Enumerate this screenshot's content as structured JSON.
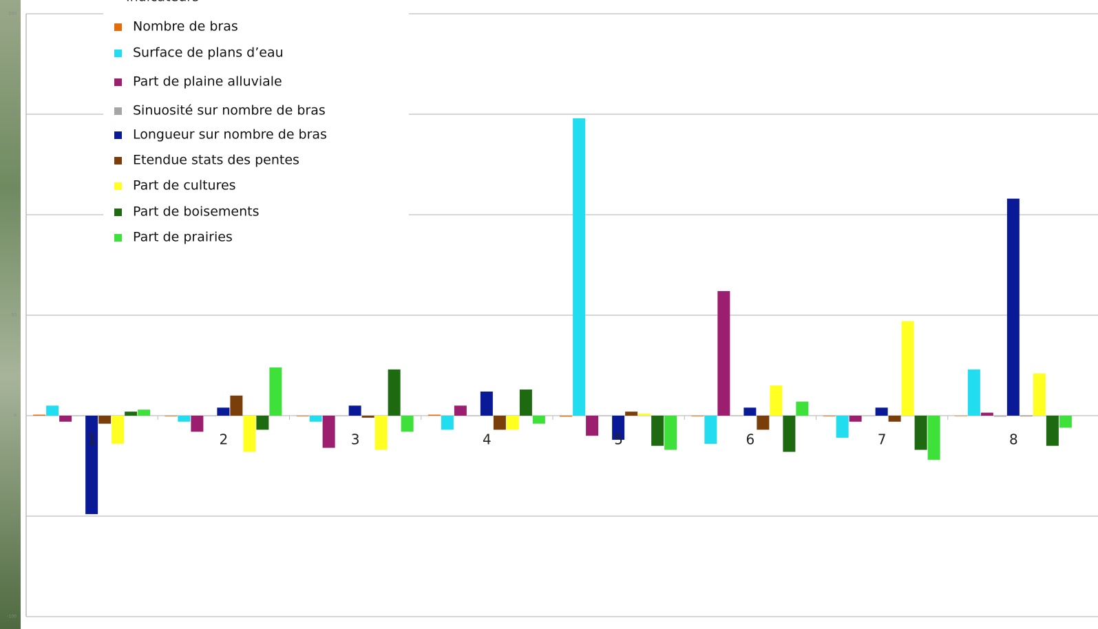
{
  "chart_data": {
    "type": "bar",
    "legend_title": "Indicateurs",
    "categories": [
      "1",
      "2",
      "3",
      "4",
      "5",
      "6",
      "7",
      "8"
    ],
    "series": [
      {
        "name": "Nombre de bras",
        "color": "#e36c0a",
        "values": [
          0.5,
          -0.3,
          -0.3,
          0.5,
          -0.5,
          -0.3,
          -0.3,
          0
        ]
      },
      {
        "name": "Surface de plans d’eau",
        "color": "#22dcf0",
        "values": [
          5,
          -3,
          -3,
          -7,
          148,
          -14,
          -11,
          23
        ]
      },
      {
        "name": "Part de plaine alluviale",
        "color": "#9b1f6e",
        "values": [
          -3,
          -8,
          -16,
          5,
          -10,
          62,
          -3,
          1.5
        ]
      },
      {
        "name": "Sinuosité sur nombre de bras",
        "color": "#a6a6a6",
        "values": [
          0,
          0,
          0,
          0,
          0,
          0,
          0,
          -0.5
        ]
      },
      {
        "name": "Longueur sur nombre de bras",
        "color": "#0a1a96",
        "values": [
          -49,
          4,
          5,
          12,
          -12,
          4,
          4,
          108
        ]
      },
      {
        "name": "Etendue stats des pentes",
        "color": "#7a3e0a",
        "values": [
          -4,
          10,
          -1,
          -7,
          2,
          -7,
          -3,
          0
        ]
      },
      {
        "name": "Part de cultures",
        "color": "#ffff22",
        "values": [
          -14,
          -18,
          -17,
          -7,
          1,
          15,
          47,
          21
        ]
      },
      {
        "name": "Part de boisements",
        "color": "#1e6a10",
        "values": [
          2,
          -7,
          23,
          13,
          -15,
          -18,
          -17,
          -15
        ]
      },
      {
        "name": "Part de prairies",
        "color": "#3ee03a",
        "values": [
          3,
          24,
          -8,
          -4,
          -17,
          7,
          -22,
          -6
        ]
      }
    ],
    "ylim": [
      -100,
      200
    ],
    "yticks": [
      -100,
      -50,
      0,
      50,
      100,
      150,
      200
    ],
    "grid": true
  }
}
